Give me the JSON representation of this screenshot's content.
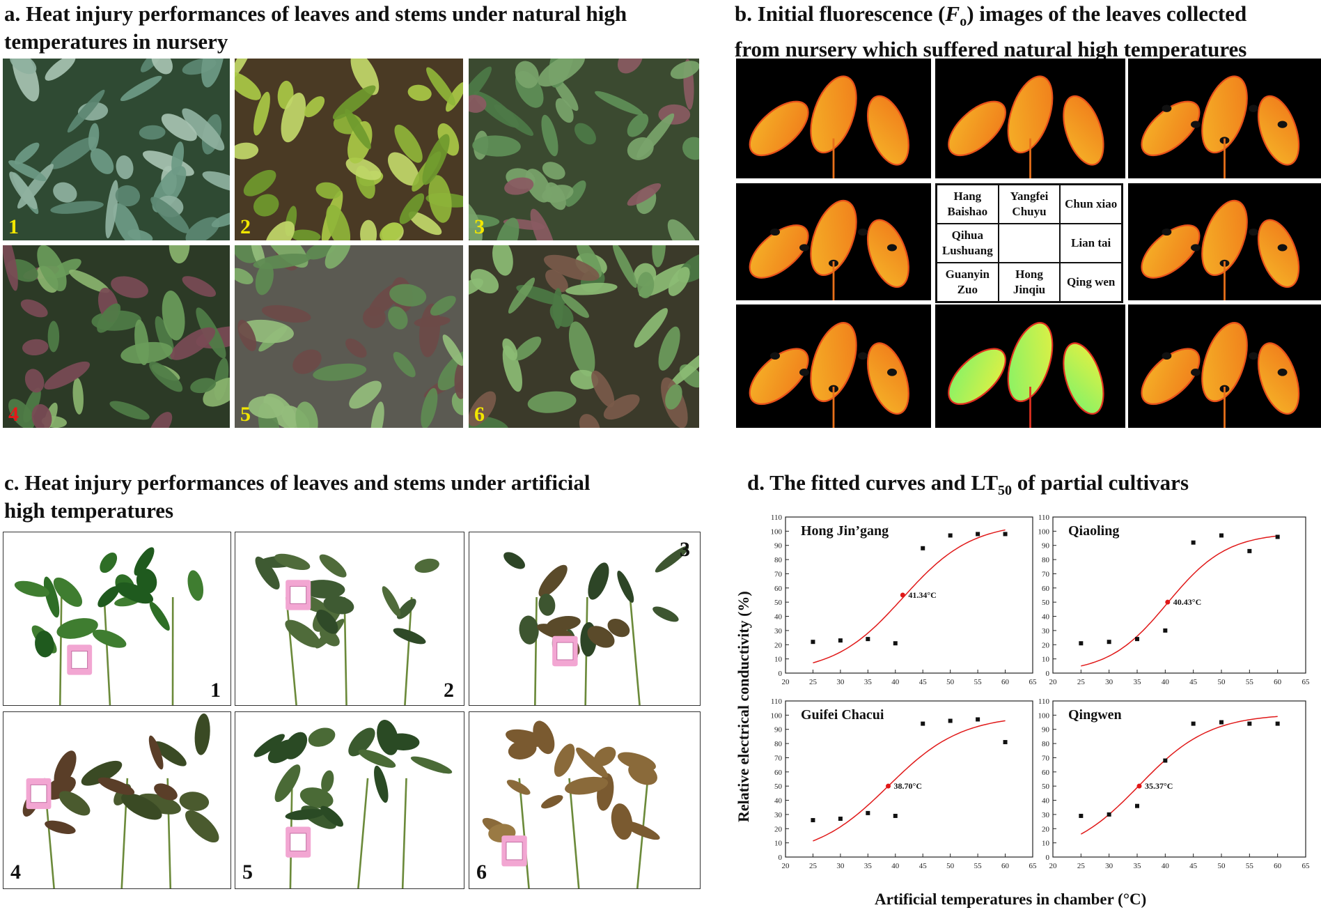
{
  "panel_a": {
    "title_line1": "a. Heat injury performances of leaves and stems under natural high",
    "title_line2": "temperatures in nursery",
    "photos": [
      {
        "num": "1",
        "num_color": "#f2e600"
      },
      {
        "num": "2",
        "num_color": "#f2e600"
      },
      {
        "num": "3",
        "num_color": "#f2e600"
      },
      {
        "num": "4",
        "num_color": "#e01a1a"
      },
      {
        "num": "5",
        "num_color": "#f2e600"
      },
      {
        "num": "6",
        "num_color": "#f2e600"
      }
    ]
  },
  "panel_b": {
    "title_pre": "b. Initial fluorescence (",
    "title_F": "F",
    "title_sub": "o",
    "title_post": ") images of the leaves collected",
    "title_line2": "from nursery which suffered natural high temperatures",
    "legend": [
      "Hang Baishao",
      "Yangfei Chuyu",
      "Chun xiao",
      "Qihua Lushuang",
      "",
      "Lian tai",
      "Guanyin Zuo",
      "Hong Jinqiu",
      "Qing wen"
    ]
  },
  "panel_c": {
    "title_line1": "c. Heat injury performances of leaves and stems under artificial",
    "title_line2": "high temperatures",
    "photos": [
      {
        "num": "1"
      },
      {
        "num": "2"
      },
      {
        "num": "3"
      },
      {
        "num": "4"
      },
      {
        "num": "5"
      },
      {
        "num": "6"
      }
    ]
  },
  "panel_d": {
    "title_pre": "d. The fitted curves and LT",
    "title_sub": "50",
    "title_post": " of partial cultivars",
    "ylabel": "Relative electrical conductivity (%)",
    "xlabel": "Artificial temperatures in chamber (°C)"
  },
  "chart_data": [
    {
      "type": "scatter",
      "title": "Hong Jin’gang",
      "x": [
        25,
        30,
        35,
        40,
        45,
        50,
        55,
        60
      ],
      "y": [
        22,
        23,
        24,
        21,
        88,
        97,
        98,
        98
      ],
      "fit": {
        "k": 0.16,
        "x0": 41.34,
        "max": 106
      },
      "lt50": {
        "x": 41.34,
        "y": 55,
        "label": "41.34°C"
      },
      "xlim": [
        20,
        65
      ],
      "ylim": [
        0,
        110
      ],
      "xticks": [
        20,
        25,
        30,
        35,
        40,
        45,
        50,
        55,
        60,
        65
      ],
      "yticks": [
        0,
        10,
        20,
        30,
        40,
        50,
        60,
        70,
        80,
        90,
        100,
        110
      ]
    },
    {
      "type": "scatter",
      "title": "Qiaoling",
      "x": [
        25,
        30,
        35,
        40,
        45,
        50,
        55,
        60
      ],
      "y": [
        21,
        22,
        24,
        30,
        92,
        97,
        86,
        96
      ],
      "fit": {
        "k": 0.19,
        "x0": 40.43,
        "max": 99
      },
      "lt50": {
        "x": 40.43,
        "y": 50,
        "label": "40.43°C"
      },
      "xlim": [
        20,
        65
      ],
      "ylim": [
        0,
        110
      ],
      "xticks": [
        20,
        25,
        30,
        35,
        40,
        45,
        50,
        55,
        60,
        65
      ],
      "yticks": [
        0,
        10,
        20,
        30,
        40,
        50,
        60,
        70,
        80,
        90,
        100,
        110
      ]
    },
    {
      "type": "scatter",
      "title": "Guifei Chacui",
      "x": [
        25,
        30,
        35,
        40,
        45,
        50,
        55,
        60
      ],
      "y": [
        26,
        27,
        31,
        29,
        94,
        96,
        97,
        81
      ],
      "fit": {
        "k": 0.15,
        "x0": 38.7,
        "max": 100
      },
      "lt50": {
        "x": 38.7,
        "y": 50,
        "label": "38.70°C"
      },
      "xlim": [
        20,
        65
      ],
      "ylim": [
        0,
        110
      ],
      "xticks": [
        20,
        25,
        30,
        35,
        40,
        45,
        50,
        55,
        60,
        65
      ],
      "yticks": [
        0,
        10,
        20,
        30,
        40,
        50,
        60,
        70,
        80,
        90,
        100,
        110
      ]
    },
    {
      "type": "scatter",
      "title": "Qingwen",
      "x": [
        25,
        30,
        35,
        40,
        45,
        50,
        55,
        60
      ],
      "y": [
        29,
        30,
        36,
        68,
        94,
        95,
        94,
        94
      ],
      "fit": {
        "k": 0.16,
        "x0": 35.37,
        "max": 101
      },
      "lt50": {
        "x": 35.37,
        "y": 50,
        "label": "35.37°C"
      },
      "xlim": [
        20,
        65
      ],
      "ylim": [
        0,
        110
      ],
      "xticks": [
        20,
        25,
        30,
        35,
        40,
        45,
        50,
        55,
        60,
        65
      ],
      "yticks": [
        0,
        10,
        20,
        30,
        40,
        50,
        60,
        70,
        80,
        90,
        100,
        110
      ]
    }
  ]
}
